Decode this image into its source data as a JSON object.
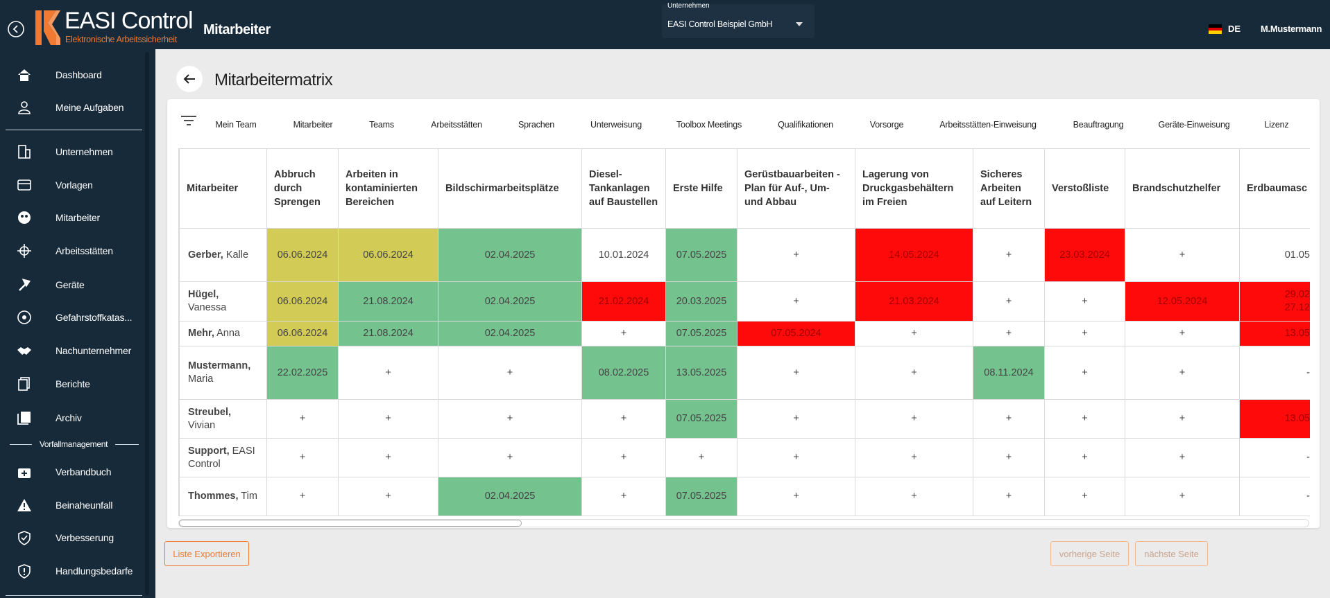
{
  "header": {
    "logo_title": "EASI Control",
    "logo_subtitle": "Elektronische Arbeitssicherheit",
    "page": "Mitarbeiter",
    "company_label": "Unternehmen",
    "company": "EASI Control Beispiel GmbH",
    "language": "DE",
    "user": "M.Mustermann"
  },
  "sidebar": {
    "items": [
      "Dashboard",
      "Meine Aufgaben",
      "Unternehmen",
      "Vorlagen",
      "Mitarbeiter",
      "Arbeitsstätten",
      "Geräte",
      "Gefahrstoffkatas...",
      "Nachunternehmer",
      "Berichte",
      "Archiv"
    ],
    "section": "Vorfallmanagement",
    "section_items": [
      "Verbandbuch",
      "Beinaheunfall",
      "Verbesserung",
      "Handlungsbedarfe"
    ]
  },
  "title": "Mitarbeitermatrix",
  "tabs": [
    "Mein Team",
    "Mitarbeiter",
    "Teams",
    "Arbeitsstätten",
    "Sprachen",
    "Unterweisung",
    "Toolbox Meetings",
    "Qualifikationen",
    "Vorsorge",
    "Arbeitsstätten-Einweisung",
    "Beauftragung",
    "Geräte-Einweisung",
    "Lizenz"
  ],
  "table": {
    "columns": [
      "Mitarbeiter",
      "Abbruch durch Sprengen",
      "Arbeiten in kontaminierten Bereichen",
      "Bildschirmarbeitsplätze",
      "Diesel-Tankanlagen auf Baustellen",
      "Erste Hilfe",
      "Gerüstbauarbeiten - Plan für Auf-, Um- und Abbau",
      "Lagerung von Druckgasbehältern im Freien",
      "Sicheres Arbeiten auf Leitern",
      "Verstoßliste",
      "Brandschutzhelfer",
      "Erdbaumasc"
    ],
    "rows": [
      {
        "last": "Gerber,",
        "first": "Kalle",
        "cells": [
          {
            "text": "06.06.2024",
            "color": "#d2cb56"
          },
          {
            "text": "06.06.2024",
            "color": "#d2cb56"
          },
          {
            "text": "02.04.2025",
            "color": "#74c28e"
          },
          "10.01.2024",
          {
            "text": "07.05.2025",
            "color": "#74c28e"
          },
          "+",
          {
            "text": "14.05.2024",
            "color": "#ff0a0a"
          },
          "+",
          {
            "text": "23.03.2024",
            "color": "#ff0a0a"
          },
          "+",
          "01.05"
        ]
      },
      {
        "last": "Hügel,",
        "first": "Vanessa",
        "cells": [
          {
            "text": "06.06.2024",
            "color": "#d2cb56"
          },
          {
            "text": "21.08.2024",
            "color": "#74c28e"
          },
          {
            "text": "02.04.2025",
            "color": "#74c28e"
          },
          {
            "text": "21.02.2024",
            "color": "#ff0a0a"
          },
          {
            "text": "20.03.2025",
            "color": "#74c28e"
          },
          "+",
          {
            "text": "21.03.2024",
            "color": "#ff0a0a"
          },
          "+",
          "+",
          {
            "text": "12.05.2024",
            "color": "#ff0a0a"
          },
          {
            "text": [
              "29.02",
              "27.12"
            ],
            "color": "#ff0a0a"
          }
        ]
      },
      {
        "last": "Mehr,",
        "first": "Anna",
        "cells": [
          {
            "text": "06.06.2024",
            "color": "#d2cb56"
          },
          {
            "text": "21.08.2024",
            "color": "#74c28e"
          },
          {
            "text": "02.04.2025",
            "color": "#74c28e"
          },
          "+",
          {
            "text": "07.05.2025",
            "color": "#74c28e"
          },
          {
            "text": "07.05.2024",
            "color": "#ff0a0a"
          },
          "+",
          "+",
          "+",
          "+",
          {
            "text": "13.05",
            "color": "#ff0a0a"
          }
        ]
      },
      {
        "last": "Mustermann,",
        "first": "Maria",
        "cells": [
          {
            "text": "22.02.2025",
            "color": "#74c28e"
          },
          "+",
          "+",
          {
            "text": "08.02.2025",
            "color": "#74c28e"
          },
          {
            "text": "13.05.2025",
            "color": "#74c28e"
          },
          "+",
          "+",
          {
            "text": "08.11.2024",
            "color": "#74c28e"
          },
          "+",
          "+",
          "-"
        ]
      },
      {
        "last": "Streubel,",
        "first": "Vivian",
        "cells": [
          "+",
          "+",
          "+",
          "+",
          {
            "text": "07.05.2025",
            "color": "#74c28e"
          },
          "+",
          "+",
          "+",
          "+",
          "+",
          {
            "text": "13.05",
            "color": "#ff0a0a"
          }
        ]
      },
      {
        "last": "Support,",
        "first": "EASI Control",
        "cells": [
          "+",
          "+",
          "+",
          "+",
          "+",
          "+",
          "+",
          "+",
          "+",
          "+",
          "-"
        ]
      },
      {
        "last": "Thommes,",
        "first": "Tim",
        "cells": [
          "+",
          "+",
          {
            "text": "02.04.2025",
            "color": "#74c28e"
          },
          "+",
          {
            "text": "07.05.2025",
            "color": "#74c28e"
          },
          "+",
          "+",
          "+",
          "+",
          "+",
          "-"
        ]
      }
    ]
  },
  "buttons": {
    "export": "Liste Exportieren",
    "prev": "vorherige Seite",
    "next": "nächste Seite"
  }
}
